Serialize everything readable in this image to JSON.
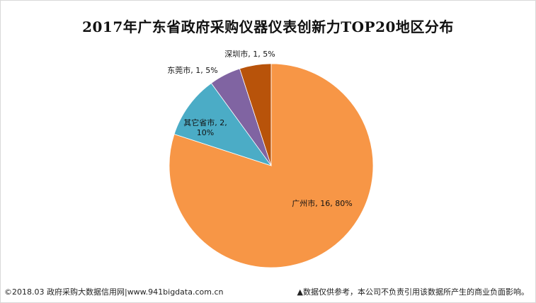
{
  "chart_data": {
    "type": "pie",
    "title": "2017年广东省政府采购仪器仪表创新力TOP20地区分布",
    "slices": [
      {
        "name": "广州市",
        "value": 16,
        "percent": "80%",
        "label": [
          "广州市, 16, 80%"
        ],
        "color": "#F79646"
      },
      {
        "name": "其它省市",
        "value": 2,
        "percent": "10%",
        "label": [
          "其它省市, 2,",
          "10%"
        ],
        "color": "#4BACC6"
      },
      {
        "name": "东莞市",
        "value": 1,
        "percent": "5%",
        "label": [
          "东莞市, 1, 5%"
        ],
        "color": "#8064A2"
      },
      {
        "name": "深圳市",
        "value": 1,
        "percent": "5%",
        "label": [
          "深圳市, 1, 5%"
        ],
        "color": "#B8530A"
      }
    ]
  },
  "footer": {
    "source": "©2018.03 政府采购大数据信用网|www.941bigdata.com.cn",
    "disclaimer": "▲数据仅供参考，本公司不负责引用该数据所产生的商业负面影响。"
  }
}
